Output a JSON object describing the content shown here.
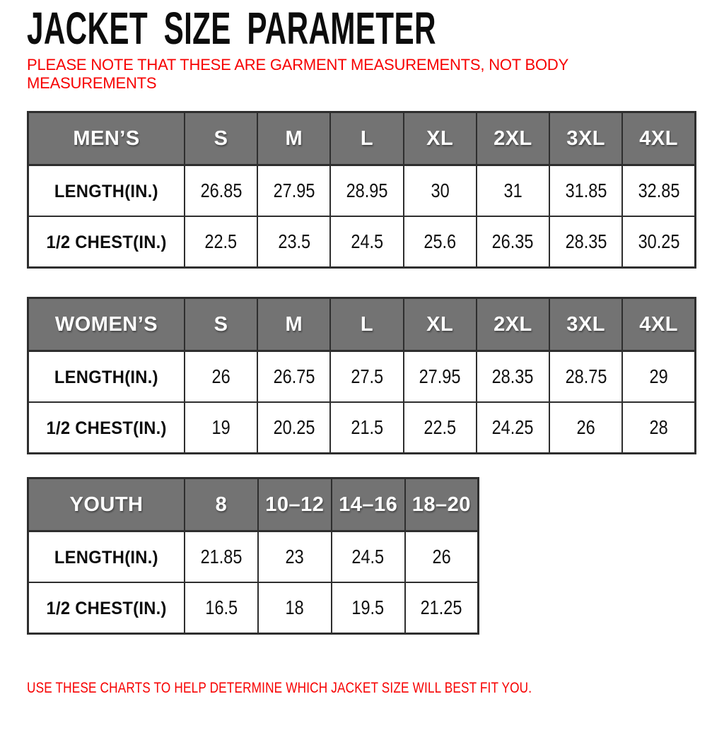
{
  "page": {
    "title": "JACKET SIZE PARAMETER",
    "note_lines": [
      "PLEASE NOTE THAT THESE ARE GARMENT MEASUREMENTS, NOT BODY",
      "MEASUREMENTS"
    ],
    "footer": "USE THESE CHARTS TO HELP DETERMINE WHICH JACKET SIZE WILL BEST FIT YOU."
  },
  "colors": {
    "accent_red": "#f70000",
    "header_gray": "#737373",
    "border_dark": "#2e2e2e",
    "title_black": "#0c0c0c"
  },
  "chart_data": [
    {
      "type": "table",
      "title": "MEN’S",
      "columns": [
        "S",
        "M",
        "L",
        "XL",
        "2XL",
        "3XL",
        "4XL"
      ],
      "rows": [
        {
          "label": "LENGTH(IN.)",
          "values": [
            "26.85",
            "27.95",
            "28.95",
            "30",
            "31",
            "31.85",
            "32.85"
          ]
        },
        {
          "label": "1/2 CHEST(IN.)",
          "values": [
            "22.5",
            "23.5",
            "24.5",
            "25.6",
            "26.35",
            "28.35",
            "30.25"
          ]
        }
      ]
    },
    {
      "type": "table",
      "title": "WOMEN’S",
      "columns": [
        "S",
        "M",
        "L",
        "XL",
        "2XL",
        "3XL",
        "4XL"
      ],
      "rows": [
        {
          "label": "LENGTH(IN.)",
          "values": [
            "26",
            "26.75",
            "27.5",
            "27.95",
            "28.35",
            "28.75",
            "29"
          ]
        },
        {
          "label": "1/2 CHEST(IN.)",
          "values": [
            "19",
            "20.25",
            "21.5",
            "22.5",
            "24.25",
            "26",
            "28"
          ]
        }
      ]
    },
    {
      "type": "table",
      "title": "YOUTH",
      "columns": [
        "8",
        "10–12",
        "14–16",
        "18–20"
      ],
      "rows": [
        {
          "label": "LENGTH(IN.)",
          "values": [
            "21.85",
            "23",
            "24.5",
            "26"
          ]
        },
        {
          "label": "1/2 CHEST(IN.)",
          "values": [
            "16.5",
            "18",
            "19.5",
            "21.25"
          ]
        }
      ]
    }
  ]
}
